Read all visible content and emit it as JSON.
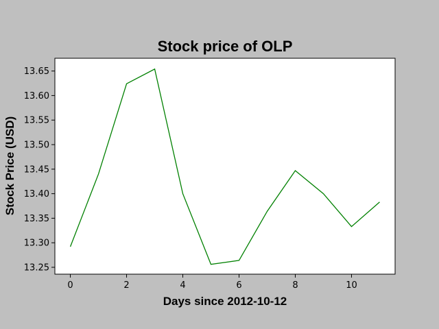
{
  "chart_data": {
    "type": "line",
    "title": "Stock price of OLP",
    "xlabel": "Days since 2012-10-12",
    "ylabel": "Stock Price (USD)",
    "x": [
      0,
      1,
      2,
      3,
      4,
      5,
      6,
      7,
      8,
      9,
      10,
      11
    ],
    "series": [
      {
        "values": [
          13.292,
          13.44,
          13.624,
          13.654,
          13.4,
          13.256,
          13.264,
          13.364,
          13.447,
          13.4,
          13.333,
          13.383
        ]
      }
    ],
    "xlim": [
      -0.55,
      11.55
    ],
    "ylim": [
      13.236,
      13.676
    ],
    "xticks": [
      0,
      2,
      4,
      6,
      8,
      10
    ],
    "xtick_labels": [
      "0",
      "2",
      "4",
      "6",
      "8",
      "10"
    ],
    "yticks": [
      13.25,
      13.3,
      13.35,
      13.4,
      13.45,
      13.5,
      13.55,
      13.6,
      13.65
    ],
    "ytick_labels": [
      "13.25",
      "13.30",
      "13.35",
      "13.40",
      "13.45",
      "13.50",
      "13.55",
      "13.60",
      "13.65"
    ],
    "grid": false,
    "line_color": "#008000",
    "background": "#bfbfbf",
    "plot_background": "#ffffff"
  }
}
